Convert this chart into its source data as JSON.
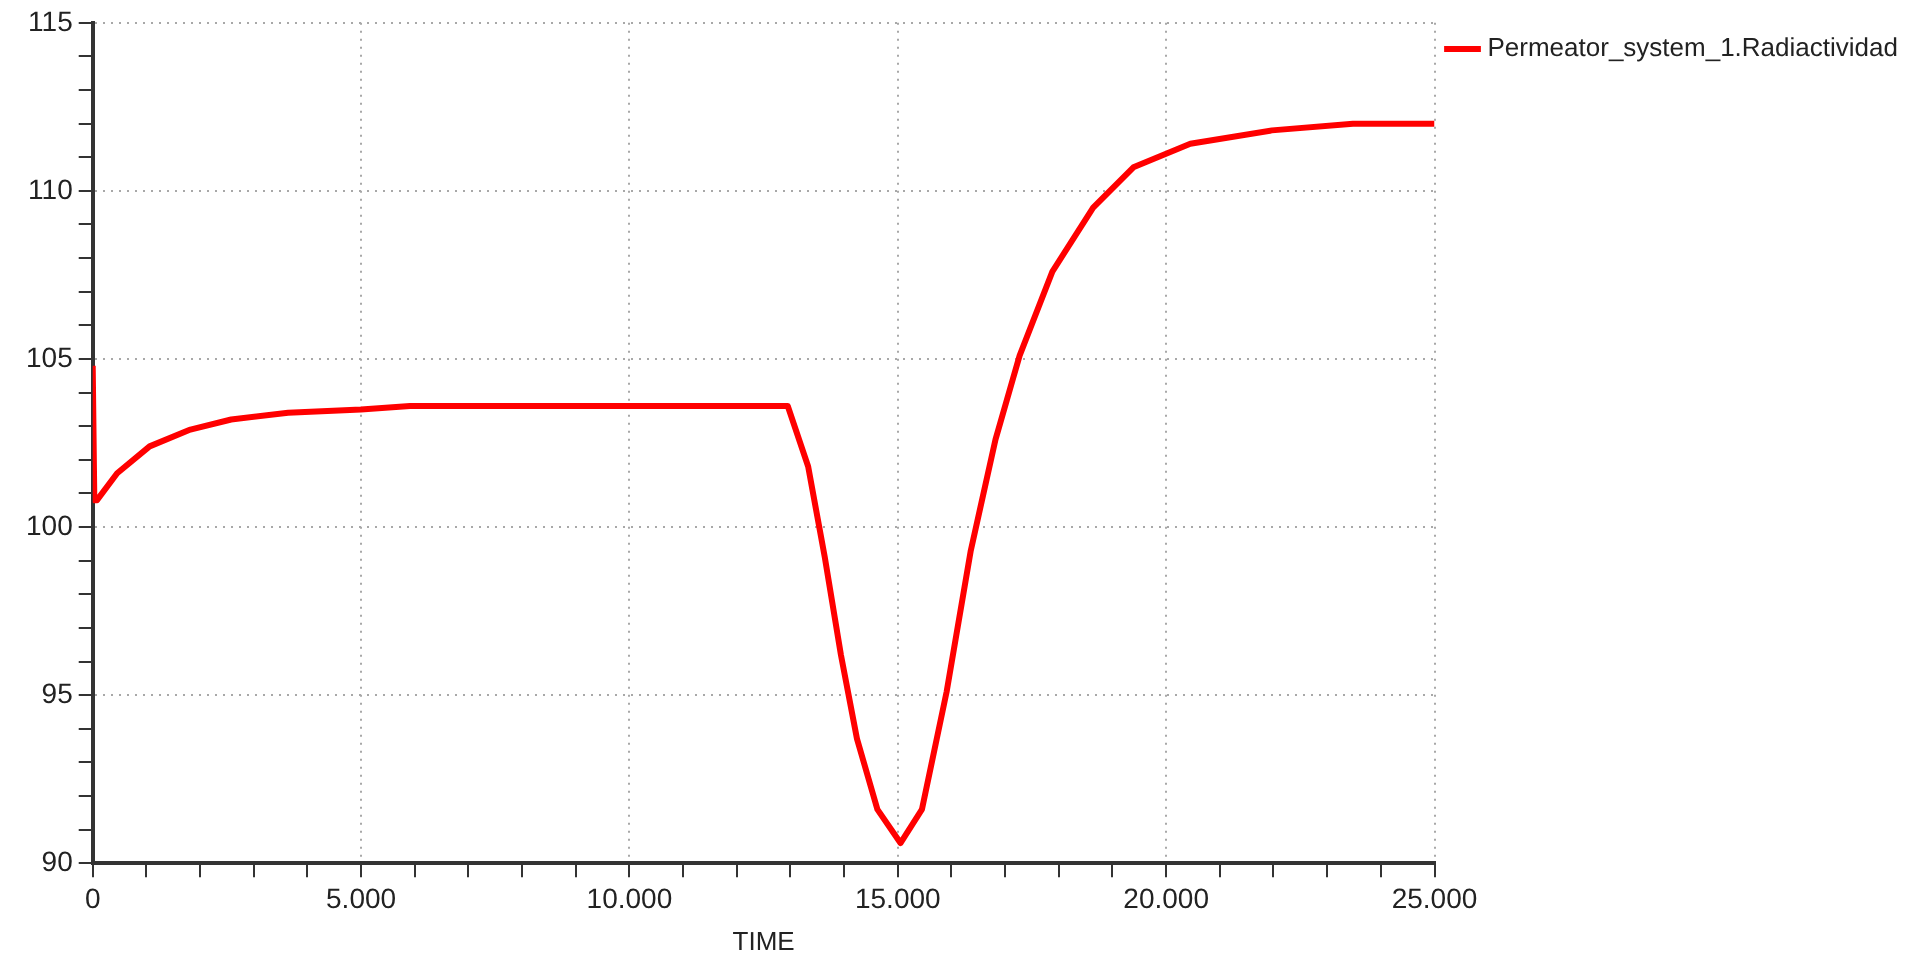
{
  "chart_data": {
    "type": "line",
    "xlabel": "TIME",
    "x": [
      0,
      30,
      80,
      455,
      1060,
      1820,
      2580,
      3640,
      5000,
      5910,
      12950,
      13330,
      13640,
      13940,
      14240,
      14620,
      15050,
      15450,
      15910,
      16360,
      16820,
      17270,
      17880,
      18640,
      19390,
      20450,
      21970,
      23480,
      25000
    ],
    "series": [
      {
        "name": "Permeator_system_1.Radiactividad",
        "color": "#ff0000",
        "values": [
          104.8,
          100.8,
          100.8,
          101.6,
          102.4,
          102.9,
          103.2,
          103.4,
          103.5,
          103.6,
          103.6,
          101.8,
          99.1,
          96.2,
          93.7,
          91.6,
          90.6,
          91.6,
          95.1,
          99.3,
          102.6,
          105.1,
          107.6,
          109.5,
          110.7,
          111.4,
          111.8,
          112.0,
          112.0
        ]
      }
    ],
    "xlim": [
      0,
      25000
    ],
    "xticks": [
      0,
      {
        "value": 1000,
        "label": null
      },
      {
        "value": 2000,
        "label": null
      },
      {
        "value": 3000,
        "label": null
      },
      {
        "value": 4000,
        "label": null
      },
      {
        "value": 5000,
        "label": "5.000"
      },
      {
        "value": 6000,
        "label": null
      },
      {
        "value": 7000,
        "label": null
      },
      {
        "value": 8000,
        "label": null
      },
      {
        "value": 9000,
        "label": null
      },
      {
        "value": 10000,
        "label": "10.000"
      },
      {
        "value": 11000,
        "label": null
      },
      {
        "value": 12000,
        "label": null
      },
      {
        "value": 13000,
        "label": null
      },
      {
        "value": 14000,
        "label": null
      },
      {
        "value": 15000,
        "label": "15.000"
      },
      {
        "value": 16000,
        "label": null
      },
      {
        "value": 17000,
        "label": null
      },
      {
        "value": 18000,
        "label": null
      },
      {
        "value": 19000,
        "label": null
      },
      {
        "value": 20000,
        "label": "20.000"
      },
      {
        "value": 21000,
        "label": null
      },
      {
        "value": 22000,
        "label": null
      },
      {
        "value": 23000,
        "label": null
      },
      {
        "value": 24000,
        "label": null
      },
      {
        "value": 25000,
        "label": "25.000"
      }
    ],
    "ylim": [
      90,
      115
    ],
    "yticks": [
      90,
      {
        "value": 91,
        "label": null
      },
      {
        "value": 92,
        "label": null
      },
      {
        "value": 93,
        "label": null
      },
      {
        "value": 94,
        "label": null
      },
      95,
      {
        "value": 96,
        "label": null
      },
      {
        "value": 97,
        "label": null
      },
      {
        "value": 98,
        "label": null
      },
      {
        "value": 99,
        "label": null
      },
      100,
      {
        "value": 101,
        "label": null
      },
      {
        "value": 102,
        "label": null
      },
      {
        "value": 103,
        "label": null
      },
      {
        "value": 104,
        "label": null
      },
      105,
      {
        "value": 106,
        "label": null
      },
      {
        "value": 107,
        "label": null
      },
      {
        "value": 108,
        "label": null
      },
      {
        "value": 109,
        "label": null
      },
      110,
      {
        "value": 111,
        "label": null
      },
      {
        "value": 112,
        "label": null
      },
      {
        "value": 113,
        "label": null
      },
      {
        "value": 114,
        "label": null
      },
      115
    ],
    "grid": true,
    "legend": "top right",
    "marker": "none",
    "line_style": "solid"
  }
}
